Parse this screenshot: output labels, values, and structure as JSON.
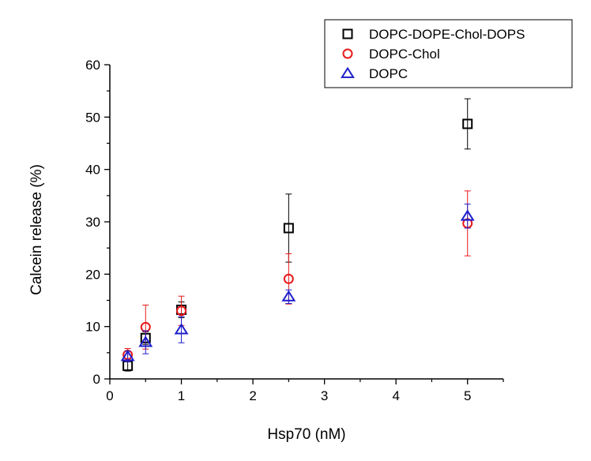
{
  "chart_data": {
    "type": "scatter",
    "xlabel": "Hsp70 (nM)",
    "ylabel": "Calcein release (%)",
    "xlim": [
      0,
      5.5
    ],
    "ylim": [
      0,
      60
    ],
    "xticks": [
      0,
      1,
      2,
      3,
      4,
      5
    ],
    "yticks": [
      0,
      10,
      20,
      30,
      40,
      50,
      60
    ],
    "xtick_labels": [
      "0",
      "1",
      "2",
      "3",
      "4",
      "5"
    ],
    "ytick_labels": [
      "0",
      "10",
      "20",
      "30",
      "40",
      "50",
      "60"
    ],
    "grid": false,
    "legend_position": "top-right",
    "series": [
      {
        "name": "DOPC-DOPE-Chol-DOPS",
        "marker": "square",
        "color": "#000000",
        "x": [
          0.25,
          0.5,
          1,
          2.5,
          5
        ],
        "y": [
          2.5,
          7.8,
          13.2,
          28.8,
          48.7
        ],
        "err": [
          1.0,
          1.2,
          1.5,
          6.5,
          4.8
        ]
      },
      {
        "name": "DOPC-Chol",
        "marker": "circle",
        "color": "#e8191b",
        "x": [
          0.25,
          0.5,
          1,
          2.5,
          5
        ],
        "y": [
          4.6,
          9.9,
          13.0,
          19.1,
          29.7
        ],
        "err": [
          1.2,
          4.2,
          2.8,
          4.8,
          6.2
        ]
      },
      {
        "name": "DOPC",
        "marker": "triangle",
        "color": "#1c1fcc",
        "x": [
          0.25,
          0.5,
          1,
          2.5,
          5
        ],
        "y": [
          4.3,
          7.0,
          9.4,
          15.7,
          31.1
        ],
        "err": [
          1.0,
          2.2,
          2.5,
          1.3,
          2.3
        ]
      }
    ]
  }
}
